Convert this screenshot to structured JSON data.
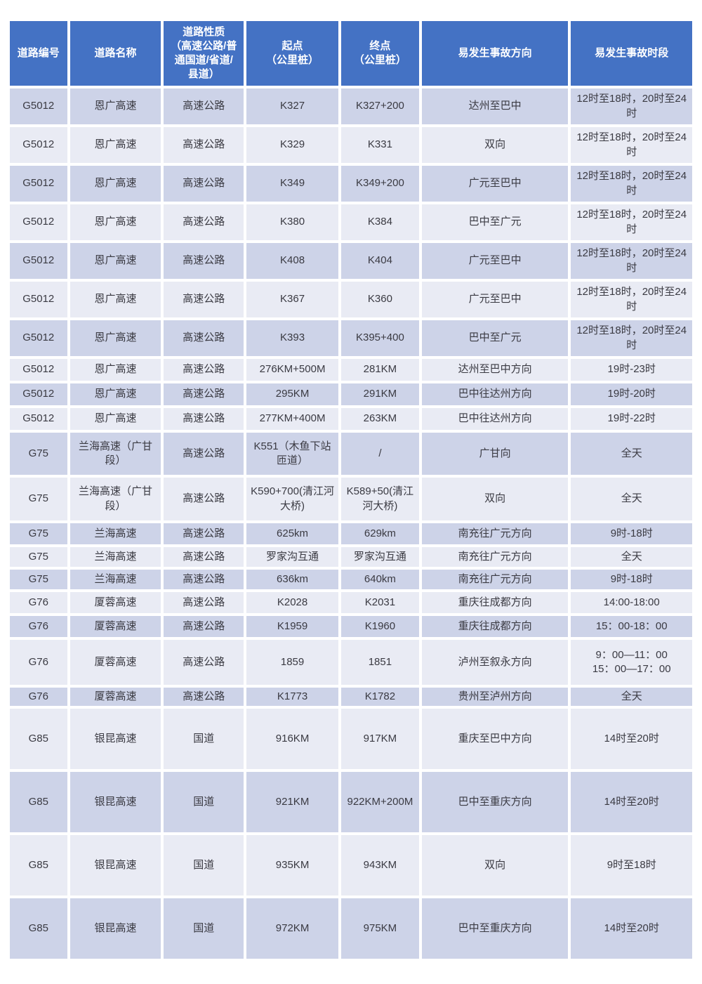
{
  "colors": {
    "header_bg": "#4472C4",
    "header_text": "#FFFFFF",
    "row_dark": "#CDD3E8",
    "row_light": "#E9EBF4",
    "text": "#3A3A42"
  },
  "table": {
    "columns": [
      "道路编号",
      "道路名称",
      "道路性质\n（高速公路/普\n通国道/省道/\n县道）",
      "起点\n（公里桩）",
      "终点\n（公里桩）",
      "易发生事故方向",
      "易发生事故时段"
    ],
    "rows": [
      [
        "G5012",
        "恩广高速",
        "高速公路",
        "K327",
        "K327+200",
        "达州至巴中",
        "12时至18时，20时至24时"
      ],
      [
        "G5012",
        "恩广高速",
        "高速公路",
        "K329",
        "K331",
        "双向",
        "12时至18时，20时至24时"
      ],
      [
        "G5012",
        "恩广高速",
        "高速公路",
        "K349",
        "K349+200",
        "广元至巴中",
        "12时至18时，20时至24时"
      ],
      [
        "G5012",
        "恩广高速",
        "高速公路",
        "K380",
        "K384",
        "巴中至广元",
        "12时至18时，20时至24时"
      ],
      [
        "G5012",
        "恩广高速",
        "高速公路",
        "K408",
        "K404",
        "广元至巴中",
        "12时至18时，20时至24时"
      ],
      [
        "G5012",
        "恩广高速",
        "高速公路",
        "K367",
        "K360",
        "广元至巴中",
        "12时至18时，20时至24时"
      ],
      [
        "G5012",
        "恩广高速",
        "高速公路",
        "K393",
        "K395+400",
        "巴中至广元",
        "12时至18时，20时至24时"
      ],
      [
        "G5012",
        "恩广高速",
        "高速公路",
        "276KM+500M",
        "281KM",
        "达州至巴中方向",
        "19时-23时"
      ],
      [
        "G5012",
        "恩广高速",
        "高速公路",
        "295KM",
        "291KM",
        "巴中往达州方向",
        "19时-20时"
      ],
      [
        "G5012",
        "恩广高速",
        "高速公路",
        "277KM+400M",
        "263KM",
        "巴中往达州方向",
        "19时-22时"
      ],
      [
        "G75",
        "兰海高速（广甘段）",
        "高速公路",
        "K551（木鱼下站匝道）",
        "/",
        "广甘向",
        "全天"
      ],
      [
        "G75",
        "兰海高速（广甘段）",
        "高速公路",
        "K590+700(清江河大桥)",
        "K589+50(清江河大桥)",
        "双向",
        "全天"
      ],
      [
        "G75",
        "兰海高速",
        "高速公路",
        "625km",
        "629km",
        "南充往广元方向",
        "9时-18时"
      ],
      [
        "G75",
        "兰海高速",
        "高速公路",
        "罗家沟互通",
        "罗家沟互通",
        "南充往广元方向",
        "全天"
      ],
      [
        "G75",
        "兰海高速",
        "高速公路",
        "636km",
        "640km",
        "南充往广元方向",
        "9时-18时"
      ],
      [
        "G76",
        "厦蓉高速",
        "高速公路",
        "K2028",
        "K2031",
        "重庆往成都方向",
        "14:00-18:00"
      ],
      [
        "G76",
        "厦蓉高速",
        "高速公路",
        "K1959",
        "K1960",
        "重庆往成都方向",
        "15：00-18：00"
      ],
      [
        "G76",
        "厦蓉高速",
        "高速公路",
        "1859",
        "1851",
        "泸州至叙永方向",
        "9：00—11：00\n15：00—17：00"
      ],
      [
        "G76",
        "厦蓉高速",
        "高速公路",
        "K1773",
        "K1782",
        "贵州至泸州方向",
        "全天"
      ],
      [
        "G85",
        "银昆高速",
        "国道",
        "916KM",
        "917KM",
        "重庆至巴中方向",
        "14时至20时"
      ],
      [
        "G85",
        "银昆高速",
        "国道",
        "921KM",
        "922KM+200M",
        "巴中至重庆方向",
        "14时至20时"
      ],
      [
        "G85",
        "银昆高速",
        "国道",
        "935KM",
        "943KM",
        "双向",
        "9时至18时"
      ],
      [
        "G85",
        "银昆高速",
        "国道",
        "972KM",
        "975KM",
        "巴中至重庆方向",
        "14时至20时"
      ]
    ]
  }
}
